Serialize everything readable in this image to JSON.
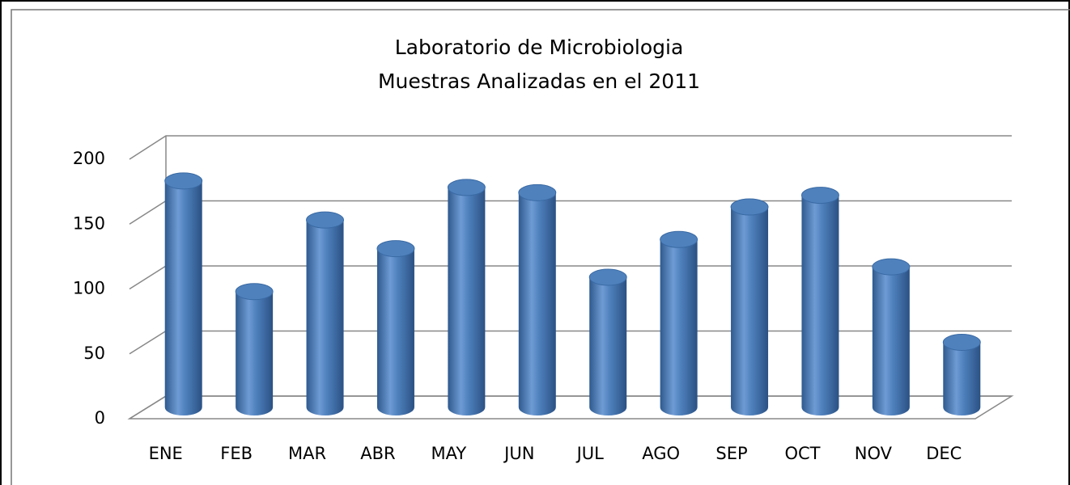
{
  "chart_data": {
    "type": "bar",
    "title": "Laboratorio de Microbiologia",
    "subtitle": "Muestras Analizadas en el 2011",
    "categories": [
      "ENE",
      "FEB",
      "MAR",
      "ABR",
      "MAY",
      "JUN",
      "JUL",
      "AGO",
      "SEP",
      "OCT",
      "NOV",
      "DEC"
    ],
    "values": [
      174,
      89,
      144,
      122,
      169,
      165,
      100,
      129,
      154,
      163,
      108,
      50
    ],
    "color": "#4f81bd",
    "ylim": [
      0,
      200
    ],
    "yticks": [
      0,
      50,
      100,
      150,
      200
    ],
    "grid": true
  }
}
